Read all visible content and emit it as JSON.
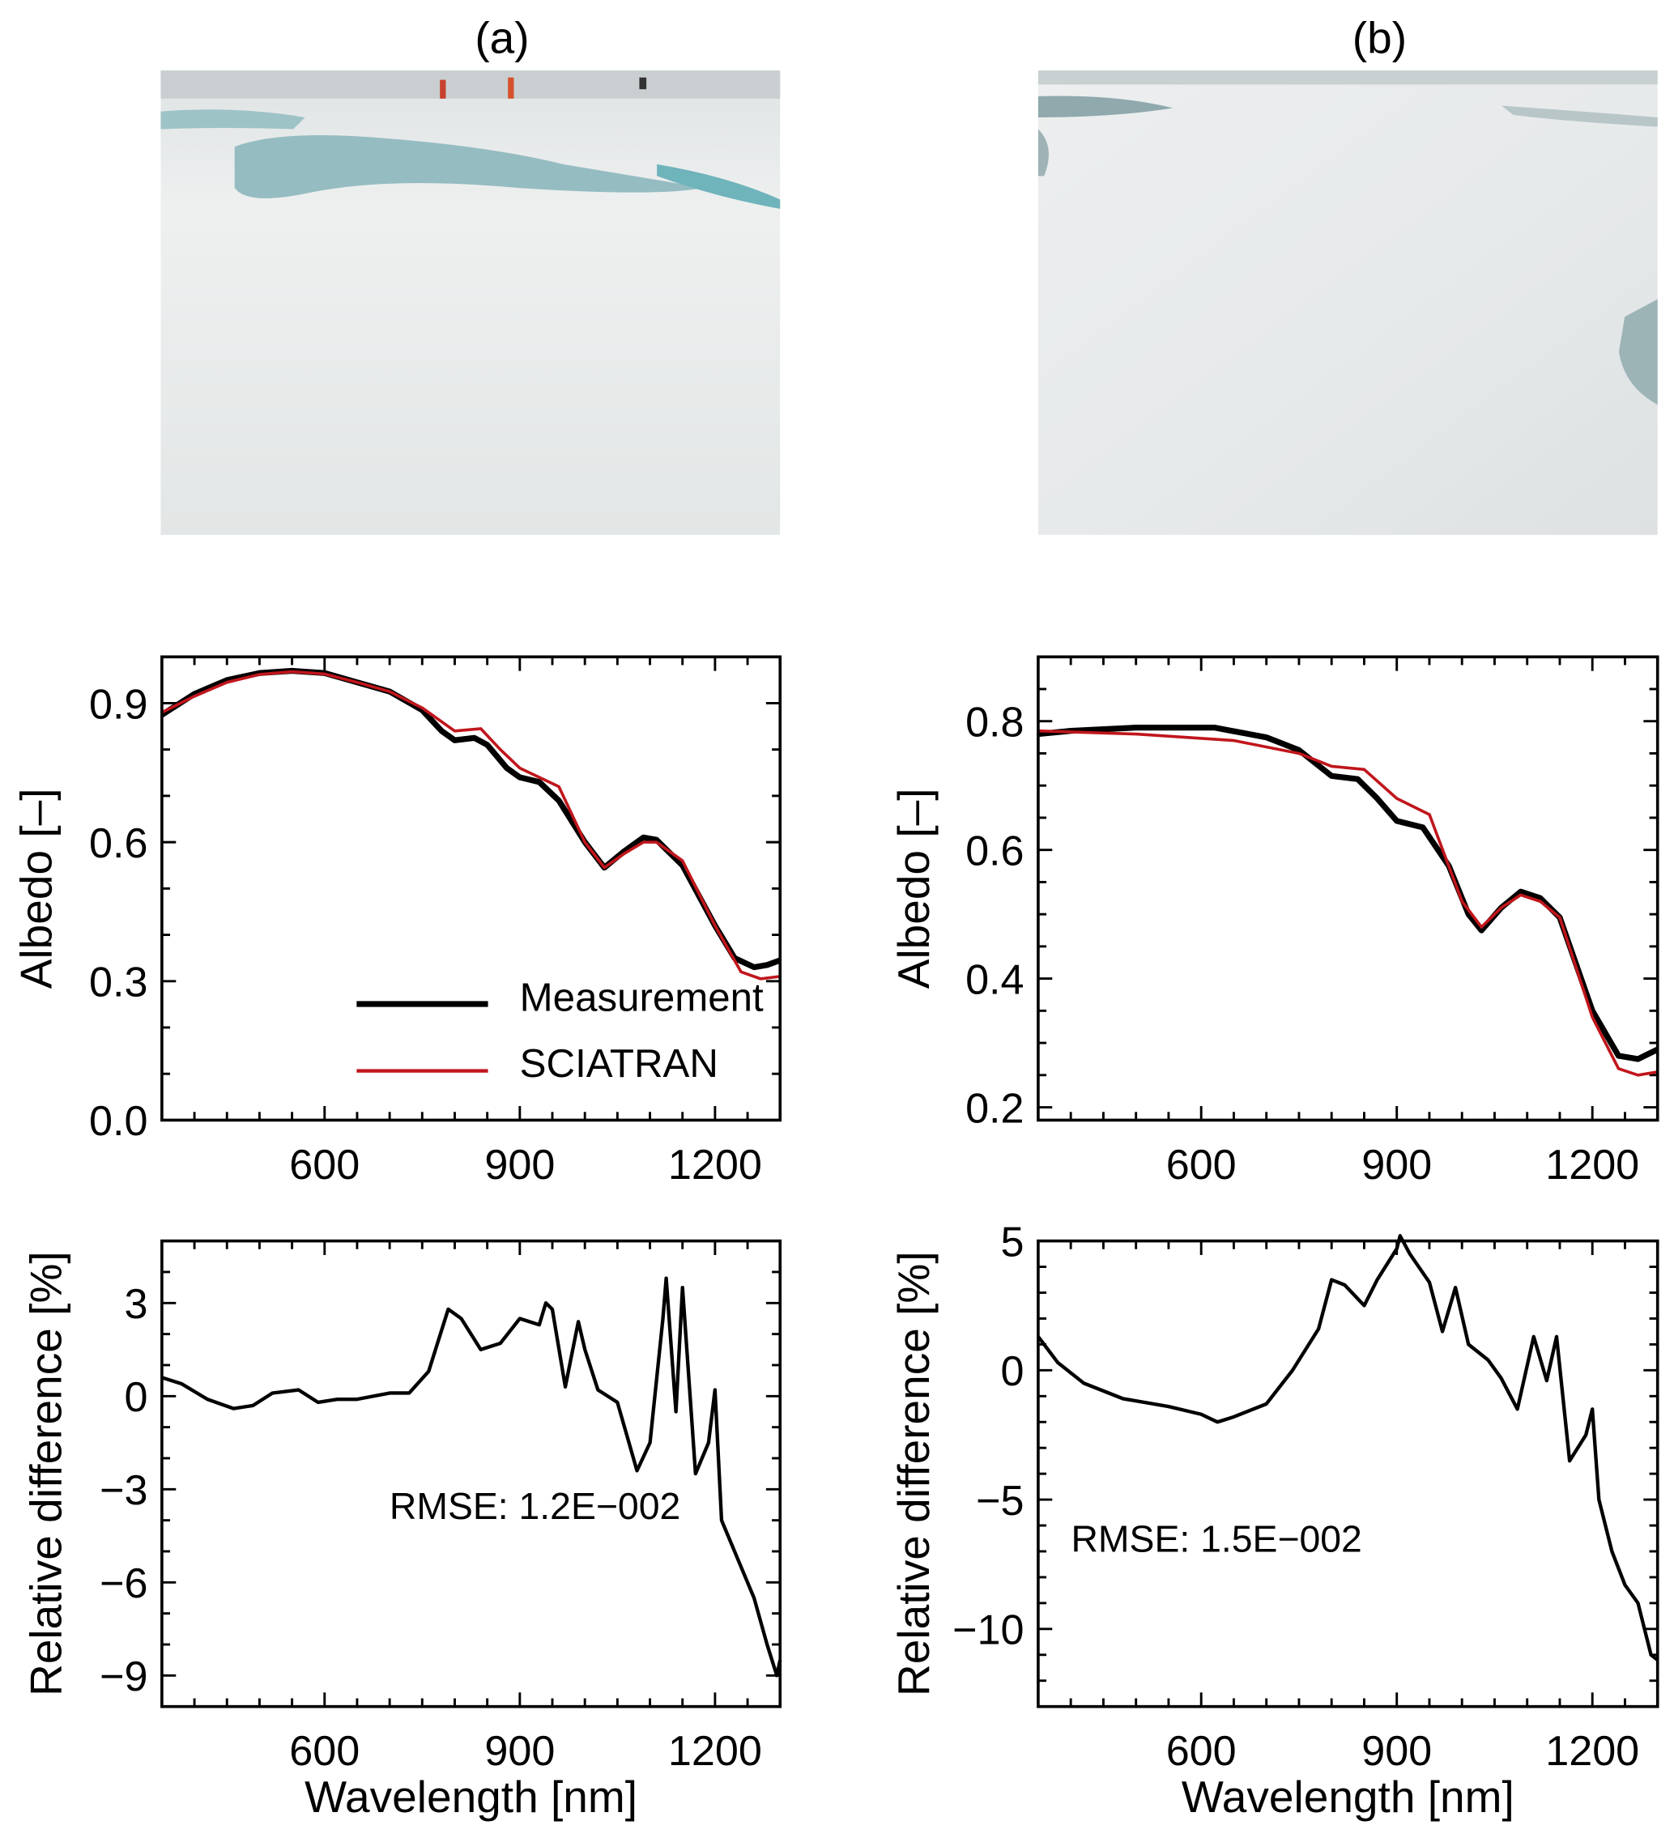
{
  "panel_titles": [
    "(a)",
    "(b)"
  ],
  "photos": [
    {
      "name": "photo-a",
      "description_label": "(a)"
    },
    {
      "name": "photo-b",
      "description_label": "(b)"
    }
  ],
  "colors": {
    "measurement": "#000000",
    "sciatran": "#c0161c"
  },
  "chart_data": [
    {
      "type": "line",
      "panel": "(a)",
      "title": "",
      "xlabel": "",
      "ylabel": "Albedo [–]",
      "xlim": [
        350,
        1300
      ],
      "ylim": [
        0,
        1.0
      ],
      "xticks": [
        600,
        900,
        1200
      ],
      "xtick_labels": [
        "600",
        "900",
        "1200"
      ],
      "yticks": [
        0.0,
        0.3,
        0.6,
        0.9
      ],
      "ytick_labels": [
        "0.0",
        "0.3",
        "0.6",
        "0.9"
      ],
      "xminor": 50,
      "yminor": 0.1,
      "legend": {
        "placement": "bottom-right",
        "entries": [
          "Measurement",
          "SCIATRAN"
        ]
      },
      "series": [
        {
          "name": "Measurement",
          "color": "#000000",
          "width": 5,
          "x": [
            350,
            400,
            450,
            500,
            550,
            600,
            650,
            700,
            750,
            780,
            800,
            830,
            850,
            880,
            900,
            930,
            960,
            1000,
            1030,
            1060,
            1090,
            1110,
            1150,
            1200,
            1230,
            1260,
            1280,
            1300
          ],
          "y": [
            0.875,
            0.92,
            0.95,
            0.965,
            0.97,
            0.965,
            0.945,
            0.925,
            0.885,
            0.84,
            0.82,
            0.825,
            0.81,
            0.76,
            0.74,
            0.73,
            0.69,
            0.6,
            0.545,
            0.58,
            0.61,
            0.605,
            0.55,
            0.42,
            0.35,
            0.33,
            0.335,
            0.345
          ]
        },
        {
          "name": "SCIATRAN",
          "color": "#c0161c",
          "width": 2.5,
          "x": [
            350,
            400,
            450,
            500,
            550,
            600,
            650,
            700,
            750,
            780,
            800,
            840,
            870,
            900,
            960,
            1000,
            1030,
            1060,
            1090,
            1110,
            1150,
            1200,
            1240,
            1270,
            1300
          ],
          "y": [
            0.88,
            0.915,
            0.945,
            0.962,
            0.968,
            0.963,
            0.945,
            0.925,
            0.89,
            0.86,
            0.84,
            0.845,
            0.8,
            0.76,
            0.72,
            0.6,
            0.545,
            0.575,
            0.6,
            0.6,
            0.56,
            0.42,
            0.32,
            0.305,
            0.31
          ]
        }
      ]
    },
    {
      "type": "line",
      "panel": "(b)",
      "title": "",
      "xlabel": "",
      "ylabel": "Albedo [–]",
      "xlim": [
        350,
        1300
      ],
      "ylim": [
        0.18,
        0.9
      ],
      "xticks": [
        600,
        900,
        1200
      ],
      "xtick_labels": [
        "600",
        "900",
        "1200"
      ],
      "yticks": [
        0.2,
        0.4,
        0.6,
        0.8
      ],
      "ytick_labels": [
        "0.2",
        "0.4",
        "0.6",
        "0.8"
      ],
      "xminor": 50,
      "yminor": 0.05,
      "series": [
        {
          "name": "Measurement",
          "color": "#000000",
          "width": 5,
          "x": [
            350,
            400,
            500,
            620,
            700,
            750,
            800,
            840,
            870,
            900,
            940,
            980,
            1010,
            1030,
            1060,
            1090,
            1120,
            1150,
            1200,
            1240,
            1270,
            1300
          ],
          "y": [
            0.78,
            0.785,
            0.79,
            0.79,
            0.775,
            0.755,
            0.715,
            0.71,
            0.68,
            0.645,
            0.635,
            0.575,
            0.5,
            0.475,
            0.51,
            0.535,
            0.525,
            0.495,
            0.35,
            0.28,
            0.275,
            0.29
          ]
        },
        {
          "name": "SCIATRAN",
          "color": "#c0161c",
          "width": 2.5,
          "x": [
            350,
            500,
            650,
            750,
            800,
            850,
            900,
            950,
            1000,
            1030,
            1060,
            1090,
            1120,
            1150,
            1200,
            1240,
            1270,
            1300
          ],
          "y": [
            0.785,
            0.78,
            0.77,
            0.75,
            0.73,
            0.725,
            0.68,
            0.655,
            0.52,
            0.48,
            0.51,
            0.53,
            0.52,
            0.495,
            0.34,
            0.26,
            0.25,
            0.255
          ]
        }
      ]
    },
    {
      "type": "line",
      "panel": "(a)",
      "title": "",
      "xlabel": "Wavelength [nm]",
      "ylabel": "Relative difference [%]",
      "xlim": [
        350,
        1300
      ],
      "ylim": [
        -10,
        5
      ],
      "xticks": [
        600,
        900,
        1200
      ],
      "xtick_labels": [
        "600",
        "900",
        "1200"
      ],
      "yticks": [
        -9,
        -6,
        -3,
        0,
        3
      ],
      "ytick_labels": [
        "−9",
        "−6",
        "−3",
        "0",
        "3"
      ],
      "xminor": 50,
      "yminor": 1,
      "annotation": "RMSE: 1.2E−002",
      "series": [
        {
          "name": "Relative difference",
          "color": "#000000",
          "width": 3,
          "x": [
            350,
            380,
            420,
            460,
            490,
            520,
            560,
            590,
            620,
            650,
            700,
            730,
            760,
            790,
            810,
            840,
            870,
            900,
            930,
            940,
            950,
            970,
            990,
            1000,
            1020,
            1050,
            1080,
            1100,
            1120,
            1125,
            1140,
            1150,
            1170,
            1190,
            1200,
            1210,
            1230,
            1260,
            1280,
            1295,
            1300
          ],
          "y": [
            0.6,
            0.4,
            -0.1,
            -0.4,
            -0.3,
            0.1,
            0.2,
            -0.2,
            -0.1,
            -0.1,
            0.1,
            0.1,
            0.8,
            2.8,
            2.5,
            1.5,
            1.7,
            2.5,
            2.3,
            3.0,
            2.8,
            0.3,
            2.4,
            1.5,
            0.2,
            -0.2,
            -2.4,
            -1.5,
            2.5,
            3.8,
            -0.5,
            3.5,
            -2.5,
            -1.5,
            0.2,
            -4,
            -5,
            -6.5,
            -8,
            -9,
            -8.5
          ]
        }
      ]
    },
    {
      "type": "line",
      "panel": "(b)",
      "title": "",
      "xlabel": "Wavelength [nm]",
      "ylabel": "Relative difference [%]",
      "xlim": [
        350,
        1300
      ],
      "ylim": [
        -13,
        5
      ],
      "xticks": [
        600,
        900,
        1200
      ],
      "xtick_labels": [
        "600",
        "900",
        "1200"
      ],
      "yticks": [
        -10,
        -5,
        0,
        5
      ],
      "ytick_labels": [
        "−10",
        "−5",
        "0",
        "5"
      ],
      "xminor": 50,
      "yminor": 1,
      "annotation": "RMSE: 1.5E−002",
      "series": [
        {
          "name": "Relative difference",
          "color": "#000000",
          "width": 3,
          "x": [
            350,
            380,
            420,
            480,
            550,
            600,
            625,
            650,
            700,
            740,
            780,
            800,
            820,
            850,
            870,
            900,
            905,
            920,
            950,
            970,
            990,
            1010,
            1040,
            1060,
            1085,
            1110,
            1130,
            1145,
            1165,
            1190,
            1200,
            1210,
            1230,
            1250,
            1270,
            1290,
            1300
          ],
          "y": [
            1.3,
            0.3,
            -0.5,
            -1.1,
            -1.4,
            -1.7,
            -2.0,
            -1.8,
            -1.3,
            0,
            1.6,
            3.5,
            3.3,
            2.5,
            3.5,
            4.7,
            5.2,
            4.5,
            3.4,
            1.5,
            3.2,
            1.0,
            0.4,
            -0.3,
            -1.5,
            1.3,
            -0.4,
            1.3,
            -3.5,
            -2.5,
            -1.5,
            -5,
            -7,
            -8.3,
            -9,
            -11,
            -11.2
          ]
        }
      ]
    }
  ]
}
